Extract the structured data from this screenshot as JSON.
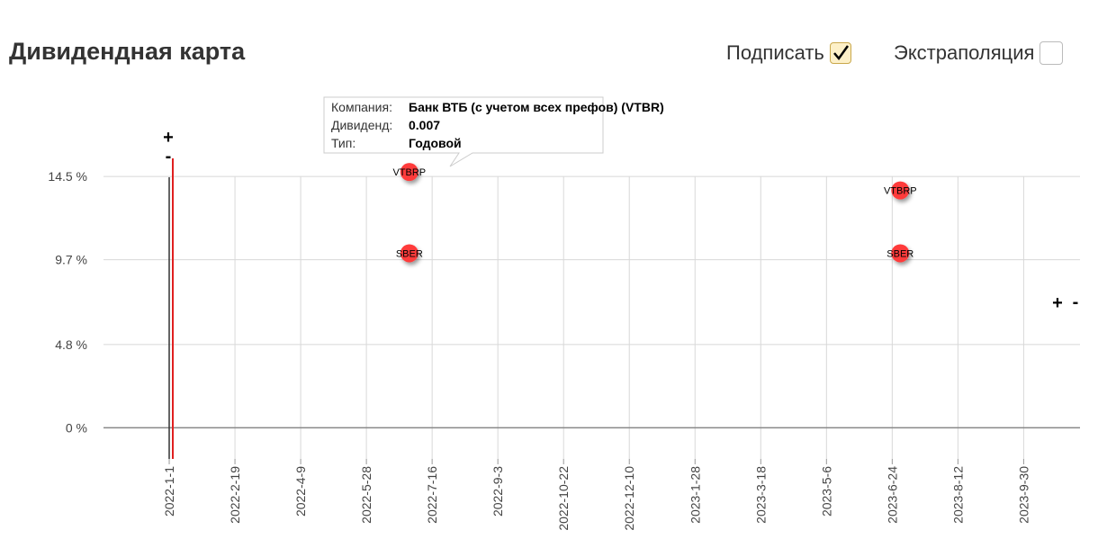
{
  "header": {
    "title": "Дивидендная карта",
    "label_toggle": "Подписать",
    "extrapolation_toggle": "Экстраполяция"
  },
  "controls": {
    "plus": "+",
    "minus": "-"
  },
  "tooltip": {
    "rows": [
      [
        "Компания:",
        "Банк ВТБ (с учетом всех префов) (VTBR)"
      ],
      [
        "Дивиденд:",
        "0.007"
      ],
      [
        "Тип:",
        "Годовой"
      ]
    ]
  },
  "chart_data": {
    "type": "scatter",
    "series": [
      {
        "name": "VTBRP",
        "color": "#ff3b3b",
        "x": [
          "2022-6-29",
          "2023-6-30"
        ],
        "values": [
          14.76,
          13.7
        ]
      },
      {
        "name": "SBER",
        "color": "#ff3b3b",
        "x": [
          "2022-6-29",
          "2023-6-30"
        ],
        "values": [
          10.07,
          10.07
        ]
      }
    ],
    "xlim": [
      "2021-11-13",
      "2023-11-11"
    ],
    "xticks": [
      "2022-1-1",
      "2022-2-19",
      "2022-4-9",
      "2022-5-28",
      "2022-7-16",
      "2022-9-3",
      "2022-10-22",
      "2022-12-10",
      "2023-1-28",
      "2023-3-18",
      "2023-5-6",
      "2023-6-24",
      "2023-8-12",
      "2023-9-30"
    ],
    "ylim": [
      -1.8,
      15.6
    ],
    "yticks": [
      {
        "value": 14.5,
        "label": "14.5 %"
      },
      {
        "value": 9.7,
        "label": "9.7 %"
      },
      {
        "value": 4.8,
        "label": "4.8 %"
      },
      {
        "value": 0,
        "label": "0 %"
      }
    ],
    "grid": true
  }
}
